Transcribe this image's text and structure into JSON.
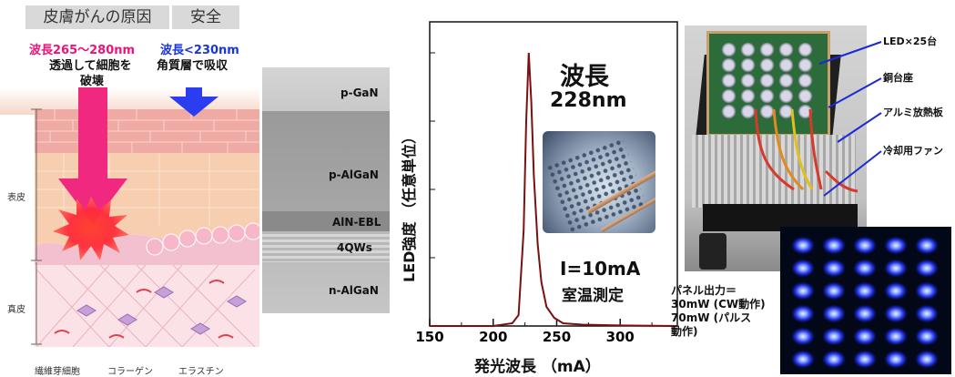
{
  "panel1": {
    "tag_left": "皮膚がんの原因",
    "tag_right": "安全",
    "wave_left": "波長265～280nm",
    "desc_left_1": "透過して細胞を",
    "desc_left_2": "破壊",
    "wave_right": "波長<230nm",
    "desc_right": "角質層で吸収",
    "epidermis": "表皮",
    "dermis": "真皮",
    "legend": [
      "繊維芽細胞",
      "コラーゲン",
      "エラスチン"
    ]
  },
  "panel2": {
    "layers": [
      "p-GaN",
      "p-AlGaN",
      "AlN-EBL",
      "4QWs",
      "n-AlGaN"
    ]
  },
  "chart_data": {
    "type": "line",
    "xlabel": "発光波長 （mA）",
    "ylabel": "LED強度 （任意単位）",
    "xlim": [
      150,
      345
    ],
    "xticks": [
      150,
      200,
      250,
      300
    ],
    "x": [
      150,
      200,
      215,
      220,
      224,
      226,
      228,
      230,
      232,
      235,
      238,
      242,
      248,
      255,
      270,
      300,
      345
    ],
    "y": [
      0.0,
      0.0,
      0.01,
      0.04,
      0.35,
      0.75,
      1.0,
      0.82,
      0.55,
      0.3,
      0.16,
      0.07,
      0.03,
      0.01,
      0.005,
      0.002,
      0.0
    ],
    "annotation_wave_1": "波長",
    "annotation_wave_2": "228nm",
    "annotation_cond_1": "I=10mA",
    "annotation_cond_2": "室温測定",
    "line_color": "#7a1010"
  },
  "panel4": {
    "labels": [
      "LED×25台",
      "銅台座",
      "アルミ放熱板",
      "冷却用ファン"
    ],
    "output_1": "パネル出力＝",
    "output_2": "30mW (CW動作)",
    "output_3": "70mW (パルス",
    "output_4": "動作)"
  },
  "colors": {
    "pink_text": "#e8157a",
    "blue_text": "#1a35d8",
    "pink_arrow": "#f0287f",
    "blue_arrow": "#2a3df0"
  }
}
